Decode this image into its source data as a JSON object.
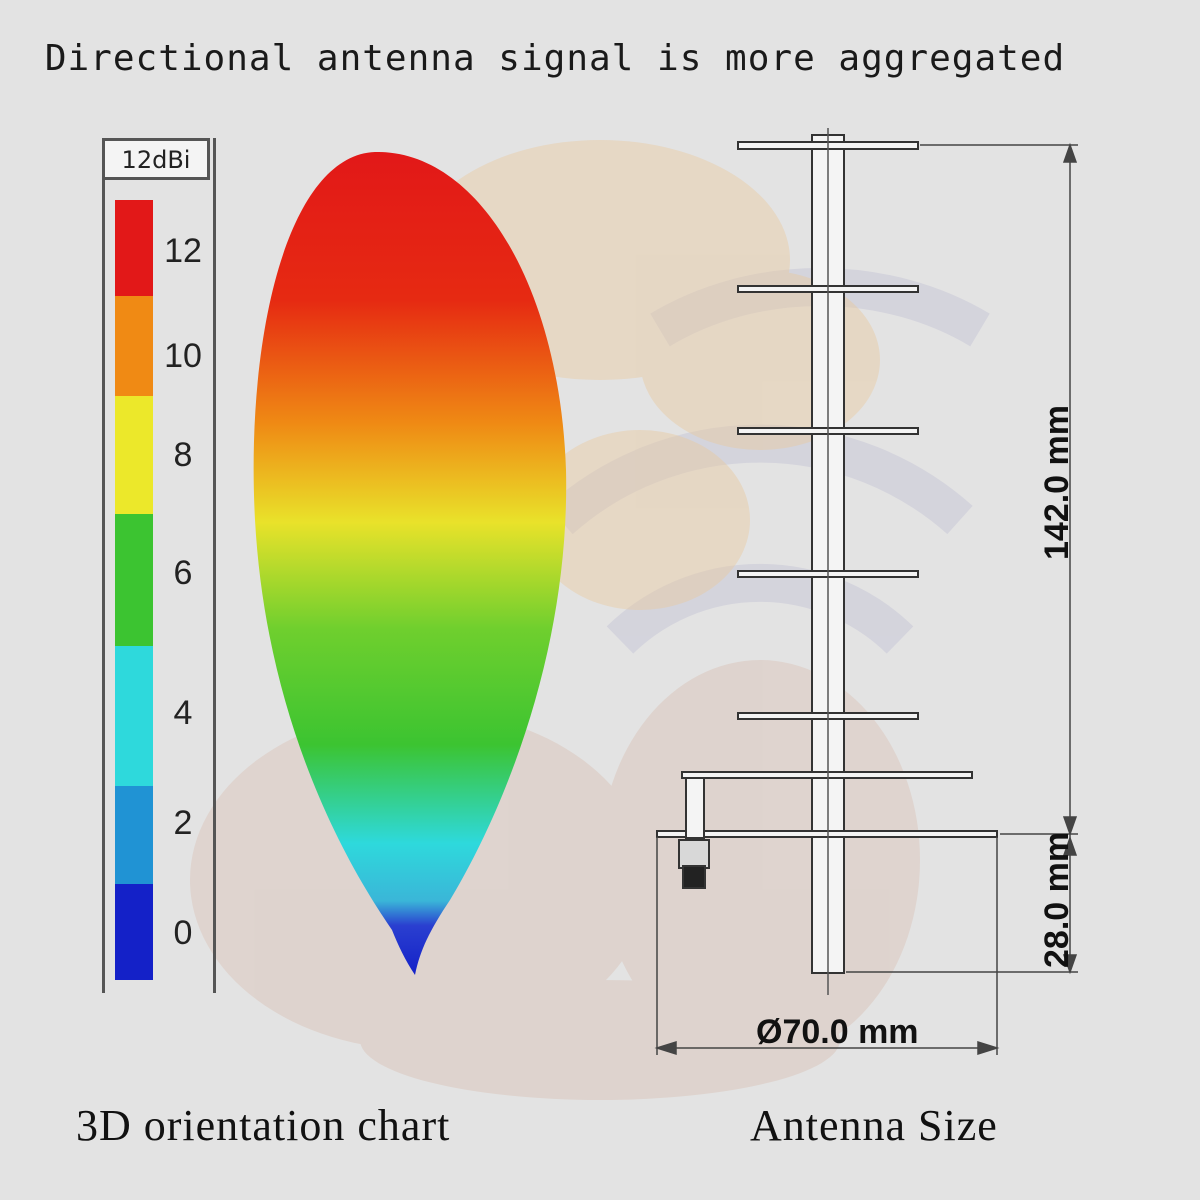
{
  "title": "Directional antenna signal is more aggregated",
  "colorbar": {
    "header": "12dBi",
    "ticks": [
      "12",
      "10",
      "8",
      "6",
      "4",
      "2",
      "0"
    ],
    "colors": [
      "#e21818",
      "#f08a14",
      "#ece82a",
      "#3cc431",
      "#2ed9dc",
      "#2093d4",
      "#1421c8"
    ]
  },
  "antenna_size": {
    "height_label": "142.0 mm",
    "base_label": "28.0 mm",
    "diameter_label": "Ø70.0 mm"
  },
  "captions": {
    "left": "3D orientation chart",
    "right": "Antenna Size"
  }
}
